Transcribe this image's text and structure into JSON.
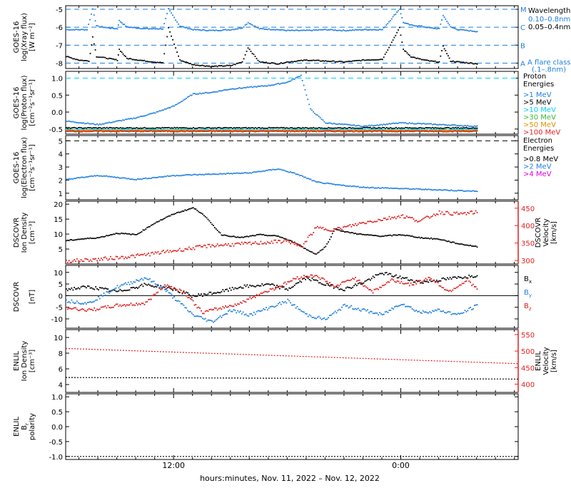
{
  "colors": {
    "black": "#000000",
    "xray_short": "#1f7fe0",
    "cyan": "#00d0ff",
    "dashline": "#1f7fe0",
    "green": "#33bb33",
    "orange": "#e09000",
    "red": "#e02020",
    "magenta": "#e000e0",
    "blue": "#1f7fe0"
  },
  "xaxis": {
    "label": "hours:minutes, Nov. 11, 2022 – Nov. 12, 2022",
    "ticks": [
      "12:00",
      "0:00"
    ],
    "range_hours": [
      6.3,
      30.2
    ],
    "tick_hours": [
      12,
      24
    ]
  },
  "chart_data": [
    {
      "type": "scatter",
      "id": "xray",
      "ylabel_lines": [
        "GOES-16",
        "log(Xray flux)",
        "[W m⁻²]"
      ],
      "ylim": [
        -8.3,
        -4.8
      ],
      "yticks": [
        -5,
        -6,
        -7,
        -8
      ],
      "flare_levels": [
        {
          "label": "M",
          "y": -5
        },
        {
          "label": "C",
          "y": -6
        },
        {
          "label": "B",
          "y": -7
        },
        {
          "label": "A",
          "y": -8
        }
      ],
      "flare_class_label": [
        "A  flare class",
        "(.1–.8nm)"
      ],
      "legend_title": "Wavelength",
      "series": [
        {
          "name": "0.10–0.8nm",
          "color_key": "xray_short",
          "x": [
            6.3,
            7.4,
            7.7,
            7.9,
            8.5,
            9.0,
            9.1,
            9.5,
            10.5,
            11.4,
            11.7,
            12.3,
            13.0,
            14.0,
            15.0,
            15.6,
            15.9,
            16.5,
            17.5,
            18.0,
            19.0,
            20.0,
            21.0,
            22.0,
            23.0,
            23.9,
            24.1,
            24.5,
            25.0,
            25.5,
            26.0,
            26.2,
            26.6,
            27.0,
            27.5,
            28.0
          ],
          "y": [
            -6.1,
            -6.1,
            -4.95,
            -5.9,
            -6.0,
            -6.05,
            -5.6,
            -5.95,
            -6.05,
            -6.05,
            -4.95,
            -5.9,
            -6.1,
            -6.15,
            -6.1,
            -6.0,
            -5.7,
            -6.05,
            -6.1,
            -6.15,
            -6.15,
            -6.1,
            -6.15,
            -6.1,
            -6.1,
            -4.95,
            -5.7,
            -5.85,
            -5.9,
            -6.0,
            -6.05,
            -5.3,
            -5.95,
            -6.1,
            -6.15,
            -6.2
          ]
        },
        {
          "name": "0.05–0.4nm",
          "color_key": "black",
          "x": [
            6.3,
            7.0,
            7.5,
            7.7,
            7.9,
            8.5,
            9.0,
            9.1,
            9.5,
            10.5,
            11.4,
            11.7,
            12.3,
            13.0,
            14.0,
            15.0,
            15.6,
            15.9,
            16.5,
            17.5,
            18.0,
            19.0,
            20.0,
            21.0,
            22.0,
            23.0,
            23.9,
            24.1,
            24.5,
            25.0,
            25.5,
            26.0,
            26.2,
            26.6,
            27.0,
            27.5,
            28.0
          ],
          "y": [
            -7.6,
            -7.8,
            -7.85,
            -6.5,
            -7.6,
            -7.7,
            -7.8,
            -7.2,
            -7.7,
            -7.85,
            -7.95,
            -6.0,
            -7.8,
            -8.05,
            -8.15,
            -8.1,
            -7.9,
            -7.1,
            -7.9,
            -8.0,
            -7.9,
            -7.8,
            -7.85,
            -7.9,
            -7.8,
            -7.75,
            -6.0,
            -7.2,
            -7.6,
            -7.75,
            -7.85,
            -7.9,
            -7.0,
            -7.85,
            -7.9,
            -7.95,
            -8.0
          ]
        }
      ]
    },
    {
      "type": "scatter",
      "id": "proton",
      "ylabel_lines": [
        "GOES-16",
        "log(Proton flux)",
        "[cm⁻²s⁻¹sr⁻¹]"
      ],
      "ylim": [
        -0.65,
        1.2
      ],
      "yticks": [
        1.0,
        0.5,
        0.0,
        -0.5
      ],
      "ytick_labels": [
        "1.0",
        "0.5",
        "0.0",
        "-0.5"
      ],
      "dashed_level": 1.0,
      "legend_title": [
        "Proton",
        "Energies"
      ],
      "series": [
        {
          "name": ">1 MeV",
          "color_key": "blue",
          "x": [
            6.3,
            8.0,
            10.0,
            11.0,
            12.0,
            13.0,
            14.0,
            15.0,
            16.0,
            17.0,
            18.0,
            18.7,
            19.2,
            20.0,
            22.0,
            24.0,
            26.0,
            28.0
          ],
          "y": [
            -0.25,
            -0.35,
            -0.15,
            0.0,
            0.2,
            0.55,
            0.6,
            0.7,
            0.75,
            0.8,
            0.9,
            1.1,
            0.1,
            -0.3,
            -0.4,
            -0.3,
            -0.35,
            -0.4
          ]
        },
        {
          "name": ">5 MeV",
          "color_key": "black",
          "flat_y": -0.45
        },
        {
          "name": ">10 MeV",
          "color_key": "cyan",
          "flat_y": -0.5
        },
        {
          "name": ">30 MeV",
          "color_key": "green",
          "flat_y": -0.52
        },
        {
          "name": ">50 MeV",
          "color_key": "orange",
          "flat_y": -0.53
        },
        {
          "name": ">100 MeV",
          "color_key": "red",
          "flat_y": -0.55
        }
      ]
    },
    {
      "type": "scatter",
      "id": "electron",
      "ylabel_lines": [
        "GOES-16",
        "log(Electron flux)",
        "[cm⁻²s⁻¹sr⁻¹]"
      ],
      "ylim": [
        0.5,
        5.4
      ],
      "yticks": [
        5,
        4,
        3,
        2,
        1
      ],
      "dashed_level": 5,
      "legend_title": [
        "Electron",
        "Energies"
      ],
      "series": [
        {
          "name": ">0.8 MeV",
          "color_key": "black"
        },
        {
          "name": ">2 MeV",
          "color_key": "blue",
          "x": [
            6.3,
            8.0,
            10.0,
            12.0,
            14.0,
            16.0,
            17.5,
            18.5,
            19.5,
            20.5,
            22.0,
            24.0,
            26.0,
            28.0
          ],
          "y": [
            2.1,
            2.4,
            2.1,
            2.4,
            2.5,
            2.6,
            2.9,
            2.5,
            1.9,
            1.7,
            1.5,
            1.4,
            1.3,
            1.2
          ]
        },
        {
          "name": ">4 MeV",
          "color_key": "magenta"
        }
      ]
    },
    {
      "type": "scatter",
      "id": "dscovr_plasma",
      "ylabel_lines": [
        "DSCOVR",
        "Ion Density",
        "[cm⁻³]"
      ],
      "ylabel_right_lines": [
        "DSCOVR",
        "Velocity",
        "[km/s]"
      ],
      "ylim": [
        0,
        21
      ],
      "yticks": [
        20,
        15,
        10,
        5
      ],
      "ylim_right": [
        290,
        470
      ],
      "yticks_right": [
        450,
        400,
        350,
        300
      ],
      "series": [
        {
          "name": "Ion Density",
          "color_key": "black",
          "x": [
            6.3,
            7.0,
            8.0,
            9.0,
            10.0,
            11.0,
            12.0,
            12.5,
            13.0,
            13.5,
            14.5,
            15.5,
            16.5,
            17.5,
            18.5,
            19.0,
            19.5,
            20.0,
            20.5,
            21.0,
            22.0,
            23.0,
            24.0,
            25.0,
            26.0,
            27.0,
            28.0
          ],
          "y": [
            8.0,
            8.5,
            9.0,
            10.5,
            10.0,
            14.0,
            17.0,
            18.0,
            19.0,
            17.0,
            10.0,
            9.0,
            10.0,
            9.5,
            7.0,
            5.0,
            3.5,
            6.0,
            12.0,
            11.0,
            10.0,
            9.5,
            10.0,
            9.0,
            8.5,
            7.0,
            6.0
          ]
        },
        {
          "name": "Velocity",
          "color_key": "red",
          "x": [
            6.3,
            8.0,
            10.0,
            12.0,
            14.0,
            16.0,
            18.0,
            18.7,
            19.5,
            20.5,
            22.0,
            23.0,
            24.0,
            25.0,
            26.0,
            27.0,
            28.0
          ],
          "y": [
            300,
            305,
            315,
            330,
            345,
            350,
            358,
            340,
            395,
            390,
            410,
            420,
            430,
            415,
            440,
            435,
            440
          ]
        }
      ]
    },
    {
      "type": "scatter",
      "id": "dscovr_mag",
      "ylabel_lines": [
        "DSCOVR",
        "",
        "[nT]"
      ],
      "ylim": [
        -14,
        13
      ],
      "yticks": [
        10,
        5,
        0,
        -5,
        -10
      ],
      "zero_line": true,
      "legend": [
        "B",
        "B",
        "B"
      ],
      "legend_subscripts": [
        "x",
        "y",
        "z"
      ],
      "series": [
        {
          "name": "Bx",
          "color_key": "black",
          "x": [
            6.3,
            7.5,
            9.0,
            10.5,
            12.0,
            13.0,
            14.5,
            15.5,
            17.0,
            18.0,
            19.0,
            20.0,
            21.0,
            22.0,
            23.0,
            24.0,
            25.0,
            26.0,
            27.0,
            28.0
          ],
          "y": [
            3,
            4,
            2,
            5,
            3,
            0,
            2,
            4,
            5,
            3,
            8,
            5,
            3,
            6,
            10,
            8,
            6,
            7,
            8,
            9
          ]
        },
        {
          "name": "By",
          "color_key": "blue",
          "x": [
            6.3,
            7.5,
            9.0,
            10.5,
            11.5,
            13.0,
            14.0,
            15.0,
            16.0,
            17.0,
            18.0,
            19.0,
            20.0,
            21.0,
            22.0,
            23.0,
            24.0,
            25.0,
            26.0,
            27.0,
            28.0
          ],
          "y": [
            -2,
            -3,
            4,
            8,
            3,
            -8,
            -11,
            -6,
            -8,
            -5,
            -2,
            -8,
            -10,
            -4,
            -6,
            -8,
            -3,
            -7,
            -6,
            -8,
            -4
          ]
        },
        {
          "name": "Bz",
          "color_key": "red",
          "x": [
            6.3,
            7.5,
            9.0,
            10.5,
            11.5,
            12.5,
            13.5,
            14.5,
            15.5,
            16.5,
            17.5,
            18.5,
            19.5,
            20.5,
            21.5,
            22.5,
            23.5,
            24.5,
            25.5,
            26.5,
            27.5,
            28.0
          ],
          "y": [
            -5,
            -6,
            -4,
            -3,
            5,
            2,
            -7,
            -5,
            -3,
            1,
            4,
            8,
            9,
            4,
            8,
            2,
            7,
            5,
            8,
            2,
            7,
            3
          ]
        }
      ]
    },
    {
      "type": "line",
      "id": "enlil_plasma",
      "ylabel_lines": [
        "ENLIL",
        "Ion Density",
        "[cm⁻³]"
      ],
      "ylabel_right_lines": [
        "ENLIL",
        "Velocity",
        "[km/s]"
      ],
      "ylim": [
        3.0,
        11.0
      ],
      "yticks": [
        10,
        8,
        6,
        4
      ],
      "ylim_right": [
        375,
        565
      ],
      "yticks_right": [
        550,
        500,
        450,
        400
      ],
      "series": [
        {
          "name": "Ion Density",
          "color_key": "black",
          "x": [
            6.3,
            30.2
          ],
          "y": [
            4.9,
            4.7
          ]
        },
        {
          "name": "Velocity",
          "color_key": "red",
          "x": [
            6.3,
            30.2
          ],
          "y": [
            508,
            462
          ]
        }
      ]
    },
    {
      "type": "line",
      "id": "enlil_polarity",
      "ylabel_lines": [
        "ENLIL",
        "B",
        "polarity"
      ],
      "ylabel_sub": "r",
      "ylim": [
        -1.1,
        1.1
      ],
      "yticks": [
        1.0,
        0.5,
        0.0,
        -0.5,
        -1.0
      ],
      "ytick_labels": [
        "1.0",
        "0.5",
        "0.0",
        "-0.5",
        "-1.0"
      ],
      "series": [
        {
          "name": "Polarity",
          "color_key": "black",
          "x": [
            6.3,
            30.2
          ],
          "y": [
            -1.0,
            -1.0
          ]
        }
      ]
    }
  ]
}
